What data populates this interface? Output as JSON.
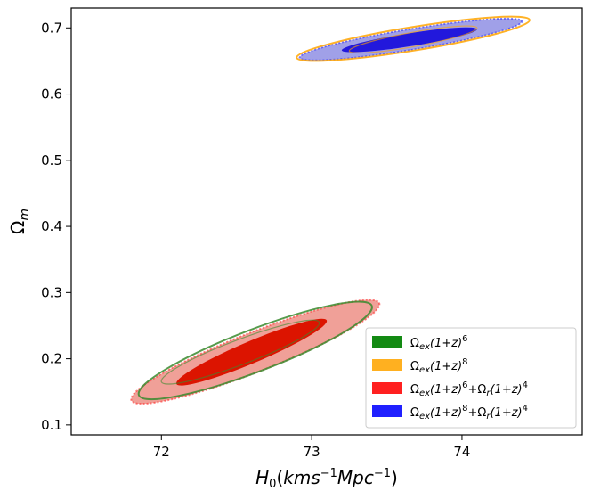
{
  "chart_data": {
    "type": "contour",
    "xlabel": "H_0(kms^{-1}Mpc^{-1})",
    "ylabel": "Ω_m",
    "xlim": [
      71.4,
      74.8
    ],
    "ylim": [
      0.085,
      0.73
    ],
    "xticks": [
      72,
      73,
      74
    ],
    "yticks": [
      0.1,
      0.2,
      0.3,
      0.4,
      0.5,
      0.6,
      0.7
    ],
    "grid": false,
    "legend_position": "lower-right",
    "series": [
      {
        "name": "Ω_ex(1+z)^6",
        "color": "#3a8a2e",
        "style": "outline",
        "inner": {
          "center": [
            72.6,
            0.21
          ],
          "p1": [
            72.0,
            0.165
          ],
          "p2": [
            73.05,
            0.255
          ],
          "w": 0.02
        },
        "outer": {
          "center": [
            72.6,
            0.21
          ],
          "p1": [
            71.85,
            0.145
          ],
          "p2": [
            73.4,
            0.28
          ],
          "w": 0.034
        }
      },
      {
        "name": "Ω_ex(1+z)^8",
        "color": "#ffa500",
        "style": "outline",
        "inner": {
          "center": [
            73.7,
            0.68
          ],
          "p1": [
            73.25,
            0.665
          ],
          "p2": [
            74.1,
            0.7
          ],
          "w": 0.011
        },
        "outer": {
          "center": [
            73.7,
            0.68
          ],
          "p1": [
            72.9,
            0.655
          ],
          "p2": [
            74.45,
            0.712
          ],
          "w": 0.018
        }
      },
      {
        "name": "Ω_ex(1+z)^6+Ω_r(1+z)^4",
        "color": "#ff2020",
        "fill_inner": "#dc1400",
        "fill_outer": "#f0a098",
        "style": "filled",
        "inner": {
          "center": [
            72.6,
            0.21
          ],
          "p1": [
            72.1,
            0.162
          ],
          "p2": [
            73.1,
            0.258
          ],
          "w": 0.018
        },
        "outer": {
          "center": [
            72.6,
            0.21
          ],
          "p1": [
            71.8,
            0.137
          ],
          "p2": [
            73.45,
            0.284
          ],
          "w": 0.032
        }
      },
      {
        "name": "Ω_ex(1+z)^8+Ω_r(1+z)^4",
        "color": "#2020ff",
        "fill_inner": "#2218dc",
        "fill_outer": "#a0a0e8",
        "style": "filled",
        "inner": {
          "center": [
            73.72,
            0.68
          ],
          "p1": [
            73.2,
            0.666
          ],
          "p2": [
            74.1,
            0.698
          ],
          "w": 0.01
        },
        "outer": {
          "center": [
            73.7,
            0.68
          ],
          "p1": [
            72.92,
            0.655
          ],
          "p2": [
            74.4,
            0.71
          ],
          "w": 0.016
        }
      }
    ]
  }
}
